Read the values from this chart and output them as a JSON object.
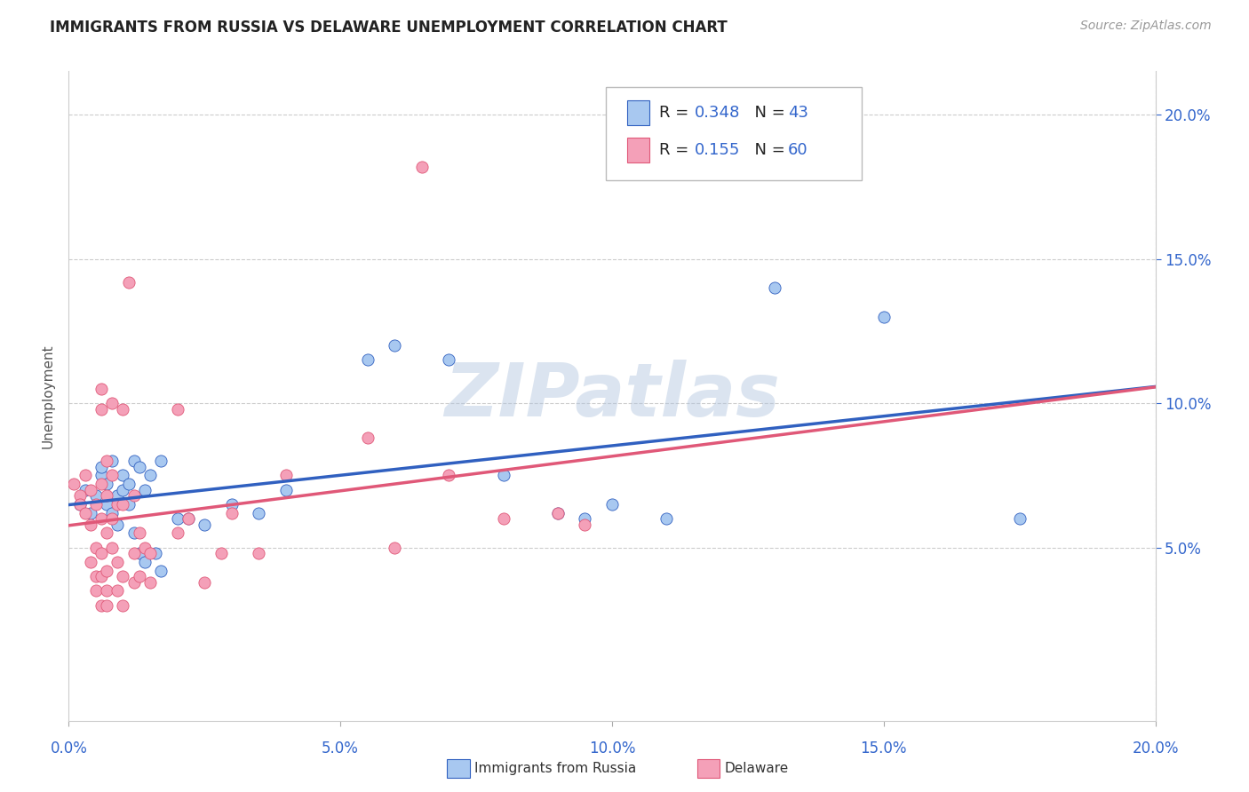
{
  "title": "IMMIGRANTS FROM RUSSIA VS DELAWARE UNEMPLOYMENT CORRELATION CHART",
  "source": "Source: ZipAtlas.com",
  "ylabel": "Unemployment",
  "legend_label_blue": "Immigrants from Russia",
  "legend_label_pink": "Delaware",
  "R_blue": 0.348,
  "N_blue": 43,
  "R_pink": 0.155,
  "N_pink": 60,
  "color_blue": "#A8C8F0",
  "color_pink": "#F4A0B8",
  "color_trendline_blue": "#3060C0",
  "color_trendline_pink": "#E05878",
  "color_axis_labels": "#3366CC",
  "watermark_text": "ZIPatlas",
  "xlim": [
    0.0,
    0.2
  ],
  "ylim": [
    -0.01,
    0.215
  ],
  "yticks": [
    0.05,
    0.1,
    0.15,
    0.2
  ],
  "ytick_labels": [
    "5.0%",
    "10.0%",
    "15.0%",
    "20.0%"
  ],
  "xticks": [
    0.0,
    0.05,
    0.1,
    0.15,
    0.2
  ],
  "xtick_labels": [
    "0.0%",
    "5.0%",
    "10.0%",
    "15.0%",
    "20.0%"
  ],
  "blue_points": [
    [
      0.002,
      0.065
    ],
    [
      0.003,
      0.07
    ],
    [
      0.004,
      0.062
    ],
    [
      0.005,
      0.068
    ],
    [
      0.006,
      0.075
    ],
    [
      0.006,
      0.078
    ],
    [
      0.007,
      0.072
    ],
    [
      0.007,
      0.065
    ],
    [
      0.008,
      0.08
    ],
    [
      0.008,
      0.062
    ],
    [
      0.009,
      0.068
    ],
    [
      0.009,
      0.058
    ],
    [
      0.01,
      0.075
    ],
    [
      0.01,
      0.07
    ],
    [
      0.011,
      0.072
    ],
    [
      0.011,
      0.065
    ],
    [
      0.012,
      0.08
    ],
    [
      0.012,
      0.055
    ],
    [
      0.013,
      0.078
    ],
    [
      0.013,
      0.048
    ],
    [
      0.014,
      0.07
    ],
    [
      0.014,
      0.045
    ],
    [
      0.015,
      0.075
    ],
    [
      0.016,
      0.048
    ],
    [
      0.017,
      0.08
    ],
    [
      0.017,
      0.042
    ],
    [
      0.02,
      0.06
    ],
    [
      0.022,
      0.06
    ],
    [
      0.025,
      0.058
    ],
    [
      0.03,
      0.065
    ],
    [
      0.035,
      0.062
    ],
    [
      0.04,
      0.07
    ],
    [
      0.055,
      0.115
    ],
    [
      0.06,
      0.12
    ],
    [
      0.07,
      0.115
    ],
    [
      0.08,
      0.075
    ],
    [
      0.09,
      0.062
    ],
    [
      0.095,
      0.06
    ],
    [
      0.1,
      0.065
    ],
    [
      0.11,
      0.06
    ],
    [
      0.13,
      0.14
    ],
    [
      0.15,
      0.13
    ],
    [
      0.175,
      0.06
    ]
  ],
  "pink_points": [
    [
      0.001,
      0.072
    ],
    [
      0.002,
      0.068
    ],
    [
      0.002,
      0.065
    ],
    [
      0.003,
      0.075
    ],
    [
      0.003,
      0.062
    ],
    [
      0.004,
      0.07
    ],
    [
      0.004,
      0.058
    ],
    [
      0.004,
      0.045
    ],
    [
      0.005,
      0.065
    ],
    [
      0.005,
      0.05
    ],
    [
      0.005,
      0.04
    ],
    [
      0.005,
      0.035
    ],
    [
      0.006,
      0.105
    ],
    [
      0.006,
      0.098
    ],
    [
      0.006,
      0.072
    ],
    [
      0.006,
      0.06
    ],
    [
      0.006,
      0.048
    ],
    [
      0.006,
      0.04
    ],
    [
      0.006,
      0.03
    ],
    [
      0.007,
      0.08
    ],
    [
      0.007,
      0.068
    ],
    [
      0.007,
      0.055
    ],
    [
      0.007,
      0.042
    ],
    [
      0.007,
      0.035
    ],
    [
      0.007,
      0.03
    ],
    [
      0.008,
      0.1
    ],
    [
      0.008,
      0.075
    ],
    [
      0.008,
      0.06
    ],
    [
      0.008,
      0.05
    ],
    [
      0.009,
      0.065
    ],
    [
      0.009,
      0.045
    ],
    [
      0.009,
      0.035
    ],
    [
      0.01,
      0.098
    ],
    [
      0.01,
      0.065
    ],
    [
      0.01,
      0.04
    ],
    [
      0.01,
      0.03
    ],
    [
      0.011,
      0.142
    ],
    [
      0.012,
      0.068
    ],
    [
      0.012,
      0.048
    ],
    [
      0.012,
      0.038
    ],
    [
      0.013,
      0.055
    ],
    [
      0.013,
      0.04
    ],
    [
      0.014,
      0.05
    ],
    [
      0.015,
      0.048
    ],
    [
      0.015,
      0.038
    ],
    [
      0.02,
      0.098
    ],
    [
      0.02,
      0.055
    ],
    [
      0.022,
      0.06
    ],
    [
      0.025,
      0.038
    ],
    [
      0.028,
      0.048
    ],
    [
      0.03,
      0.062
    ],
    [
      0.035,
      0.048
    ],
    [
      0.04,
      0.075
    ],
    [
      0.055,
      0.088
    ],
    [
      0.06,
      0.05
    ],
    [
      0.065,
      0.182
    ],
    [
      0.07,
      0.075
    ],
    [
      0.08,
      0.06
    ],
    [
      0.09,
      0.062
    ],
    [
      0.095,
      0.058
    ]
  ]
}
